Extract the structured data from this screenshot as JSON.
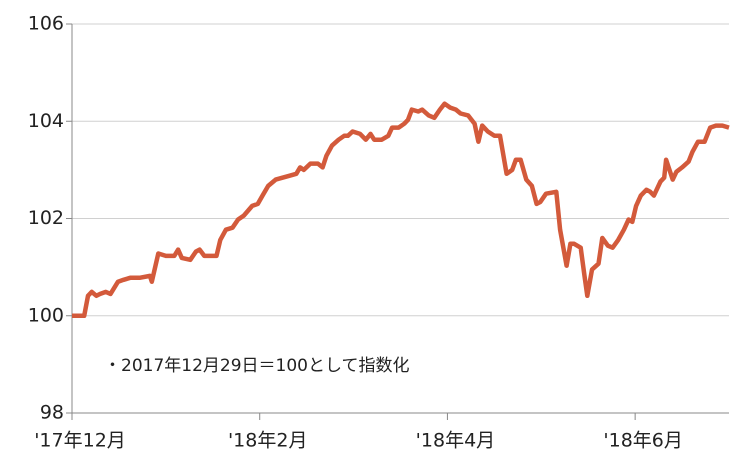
{
  "chart_data": {
    "type": "line",
    "annotation": "・2017年12月29日＝100として指数化",
    "x": [
      0,
      0.13,
      0.17,
      0.21,
      0.26,
      0.3,
      0.36,
      0.41,
      0.49,
      0.55,
      0.62,
      0.72,
      0.83,
      0.85,
      0.92,
      1.0,
      1.09,
      1.13,
      1.17,
      1.26,
      1.32,
      1.36,
      1.41,
      1.54,
      1.58,
      1.64,
      1.71,
      1.77,
      1.83,
      1.92,
      1.98,
      2.03,
      2.09,
      2.17,
      2.32,
      2.39,
      2.43,
      2.47,
      2.54,
      2.62,
      2.67,
      2.71,
      2.77,
      2.84,
      2.9,
      2.94,
      2.99,
      3.07,
      3.13,
      3.18,
      3.22,
      3.3,
      3.37,
      3.41,
      3.48,
      3.54,
      3.58,
      3.62,
      3.69,
      3.73,
      3.8,
      3.86,
      3.92,
      3.97,
      4.03,
      4.09,
      4.14,
      4.22,
      4.29,
      4.33,
      4.37,
      4.43,
      4.5,
      4.56,
      4.63,
      4.69,
      4.73,
      4.78,
      4.84,
      4.9,
      4.95,
      4.99,
      5.05,
      5.16,
      5.2,
      5.27,
      5.31,
      5.35,
      5.42,
      5.46,
      5.49,
      5.54,
      5.61,
      5.65,
      5.71,
      5.76,
      5.82,
      5.88,
      5.93,
      5.97,
      6.01,
      6.06,
      6.12,
      6.16,
      6.2,
      6.27,
      6.31,
      6.33,
      6.4,
      6.44,
      6.5,
      6.57,
      6.61,
      6.67,
      6.74,
      6.8,
      6.86,
      6.93,
      7.0
    ],
    "series": [
      {
        "name": "index",
        "color": "#d35a3b",
        "values": [
          100,
          100,
          100.41,
          100.49,
          100.41,
          100.45,
          100.49,
          100.45,
          100.7,
          100.74,
          100.78,
          100.78,
          100.82,
          100.7,
          101.28,
          101.23,
          101.23,
          101.36,
          101.19,
          101.15,
          101.32,
          101.36,
          101.23,
          101.23,
          101.56,
          101.77,
          101.81,
          101.98,
          102.06,
          102.26,
          102.3,
          102.47,
          102.67,
          102.8,
          102.88,
          102.92,
          103.05,
          103.0,
          103.13,
          103.13,
          103.05,
          103.29,
          103.5,
          103.62,
          103.7,
          103.7,
          103.79,
          103.74,
          103.62,
          103.74,
          103.62,
          103.62,
          103.7,
          103.87,
          103.87,
          103.95,
          104.03,
          104.24,
          104.2,
          104.24,
          104.12,
          104.07,
          104.24,
          104.36,
          104.28,
          104.24,
          104.16,
          104.12,
          103.95,
          103.58,
          103.91,
          103.79,
          103.7,
          103.7,
          102.92,
          103.0,
          103.21,
          103.21,
          102.8,
          102.67,
          102.3,
          102.34,
          102.51,
          102.55,
          101.77,
          101.03,
          101.48,
          101.48,
          101.4,
          100.82,
          100.41,
          100.95,
          101.07,
          101.6,
          101.44,
          101.4,
          101.56,
          101.77,
          101.98,
          101.93,
          102.26,
          102.47,
          102.59,
          102.55,
          102.47,
          102.76,
          102.84,
          103.21,
          102.8,
          102.96,
          103.05,
          103.17,
          103.37,
          103.58,
          103.58,
          103.87,
          103.91,
          103.91,
          103.87
        ]
      }
    ],
    "xlim": [
      0,
      7
    ],
    "xticks": [
      {
        "value": 0,
        "label": "'17年12月"
      },
      {
        "value": 2,
        "label": "'18年2月"
      },
      {
        "value": 4,
        "label": "'18年4月"
      },
      {
        "value": 6,
        "label": "'18年6月"
      }
    ],
    "ylim": [
      98,
      106
    ],
    "yticks": [
      98,
      100,
      102,
      104,
      106
    ],
    "grid": true
  }
}
